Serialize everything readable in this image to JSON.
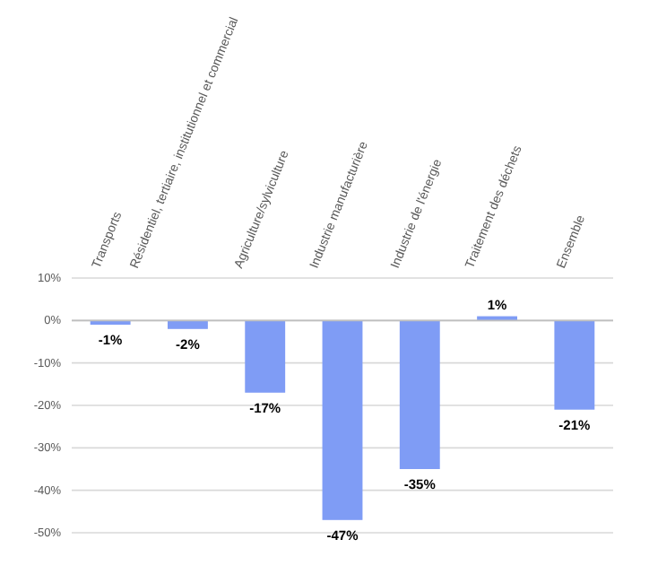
{
  "chart_data": {
    "type": "bar",
    "categories": [
      "Transports",
      "Résidentiel, tertiaire, institutionnel et commercial",
      "Agriculture/sylviculture",
      "Industrie manufacturière",
      "Industrie de l'énergie",
      "Traitement des déchets",
      "Ensemble"
    ],
    "values": [
      -1,
      -2,
      -17,
      -47,
      -35,
      1,
      -21
    ],
    "value_labels": [
      "-1%",
      "-2%",
      "-17%",
      "-47%",
      "-35%",
      "1%",
      "-21%"
    ],
    "color": "#7f9cf5",
    "ylim": [
      -50,
      10
    ],
    "yticks": [
      {
        "value": 10,
        "label": "10%"
      },
      {
        "value": 0,
        "label": "0%"
      },
      {
        "value": -10,
        "label": "-10%"
      },
      {
        "value": -20,
        "label": "-20%"
      },
      {
        "value": -30,
        "label": "-30%"
      },
      {
        "value": -40,
        "label": "-40%"
      },
      {
        "value": -50,
        "label": "-50%"
      }
    ],
    "grid": "y"
  }
}
